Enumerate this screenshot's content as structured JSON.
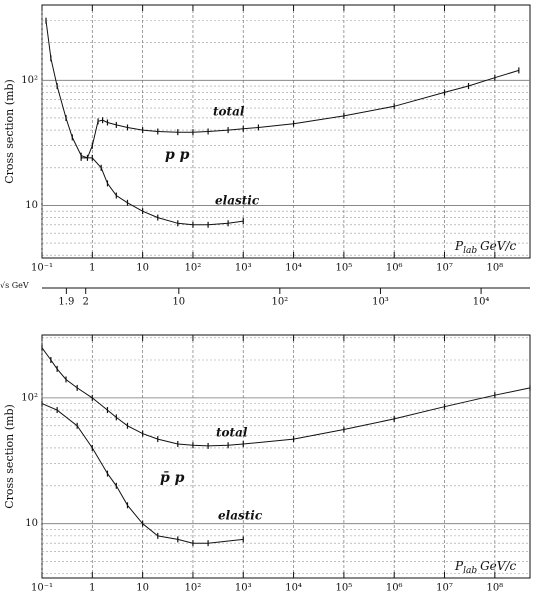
{
  "chart_data": [
    {
      "type": "line",
      "ylabel": "Cross section (mb)",
      "annotation": "p p",
      "xlabel_main": "P",
      "xlabel_sub": "lab",
      "xlabel_unit": "GeV/c",
      "xscale": "log",
      "yscale": "log",
      "grid": true,
      "color": "#111",
      "xlim": [
        0.1,
        500000000
      ],
      "ylim": [
        3.8,
        400
      ],
      "xticks": [
        {
          "value": 0.1,
          "label": "10⁻¹"
        },
        1,
        10,
        {
          "value": 100,
          "label": "10²"
        },
        {
          "value": 1000,
          "label": "10³"
        },
        {
          "value": 10000,
          "label": "10⁴"
        },
        {
          "value": 100000,
          "label": "10⁵"
        },
        {
          "value": 1000000,
          "label": "10⁶"
        },
        {
          "value": 10000000,
          "label": "10⁷"
        },
        {
          "value": 100000000,
          "label": "10⁸"
        }
      ],
      "yticks": [
        10,
        {
          "value": 100,
          "label": "10²"
        }
      ],
      "series": [
        {
          "name": "total",
          "x": [
            0.12,
            0.15,
            0.2,
            0.3,
            0.4,
            0.6,
            0.8,
            1,
            1.3,
            1.6,
            2,
            3,
            5,
            10,
            20,
            50,
            100,
            200,
            500,
            1000,
            2000,
            10000,
            100000,
            1000000,
            10000000,
            30000000,
            100000000,
            300000000
          ],
          "values": [
            300,
            150,
            90,
            50,
            35,
            25,
            24,
            30,
            47,
            48,
            46,
            44,
            42,
            40,
            39,
            38.5,
            38.5,
            39,
            40,
            41,
            42,
            45,
            52,
            62,
            80,
            90,
            105,
            120
          ]
        },
        {
          "name": "elastic",
          "x": [
            0.6,
            1,
            1.5,
            2,
            3,
            5,
            10,
            20,
            50,
            100,
            200,
            500,
            1000
          ],
          "values": [
            24,
            24,
            20,
            15,
            12,
            10.5,
            9,
            8,
            7.2,
            7,
            7,
            7.2,
            7.5
          ]
        }
      ]
    },
    {
      "type": "axis",
      "label": "√s GeV",
      "xscale": "sqrt-s",
      "xticks": [
        1.9,
        2,
        10,
        {
          "value": 100,
          "label": "10²"
        },
        {
          "value": 1000,
          "label": "10³"
        },
        {
          "value": 10000,
          "label": "10⁴"
        }
      ]
    },
    {
      "type": "line",
      "ylabel": "Cross section (mb)",
      "annotation": "p̄ p",
      "xlabel_main": "P",
      "xlabel_sub": "lab",
      "xlabel_unit": "GeV/c",
      "xscale": "log",
      "yscale": "log",
      "grid": true,
      "color": "#111",
      "xlim": [
        0.1,
        500000000
      ],
      "ylim": [
        3.7,
        316
      ],
      "xticks": [
        {
          "value": 0.1,
          "label": "10⁻¹"
        },
        1,
        10,
        {
          "value": 100,
          "label": "10²"
        },
        {
          "value": 1000,
          "label": "10³"
        },
        {
          "value": 10000,
          "label": "10⁴"
        },
        {
          "value": 100000,
          "label": "10⁵"
        },
        {
          "value": 1000000,
          "label": "10⁶"
        },
        {
          "value": 10000000,
          "label": "10⁷"
        },
        {
          "value": 100000000,
          "label": "10⁸"
        }
      ],
      "yticks": [
        10,
        {
          "value": 100,
          "label": "10²"
        }
      ],
      "series": [
        {
          "name": "total",
          "x": [
            0.1,
            0.15,
            0.2,
            0.3,
            0.5,
            1,
            2,
            3,
            5,
            10,
            20,
            50,
            100,
            200,
            500,
            1000,
            10000,
            100000,
            1000000,
            10000000,
            100000000,
            500000000
          ],
          "values": [
            250,
            200,
            170,
            140,
            120,
            100,
            80,
            70,
            60,
            52,
            47,
            43,
            42,
            41.5,
            42,
            43,
            47,
            56,
            68,
            85,
            105,
            120
          ]
        },
        {
          "name": "elastic",
          "x": [
            0.1,
            0.2,
            0.5,
            1,
            2,
            3,
            5,
            10,
            20,
            50,
            100,
            200,
            1000
          ],
          "values": [
            90,
            80,
            60,
            40,
            25,
            20,
            14,
            10,
            8,
            7.5,
            7,
            7,
            7.5
          ]
        }
      ]
    }
  ]
}
